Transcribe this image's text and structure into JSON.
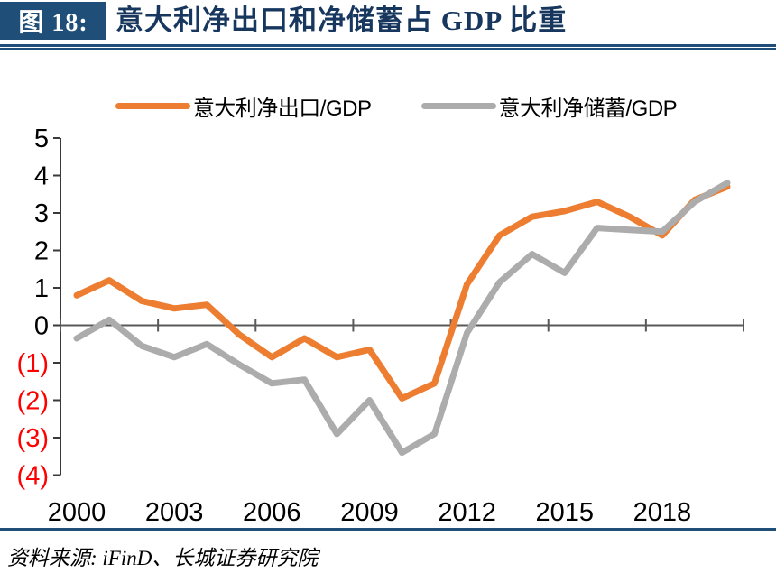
{
  "header": {
    "figure_label": "图 18:",
    "title": "意大利净出口和净储蓄占 GDP 比重"
  },
  "footer": {
    "source": "资料来源: iFinD、长城证券研究院"
  },
  "colors": {
    "accent_navy": "#1F4E79",
    "title_text": "#17375E",
    "net_exports_orange": "#ED7D31",
    "net_savings_gray": "#ACACAC",
    "negative_tick_red": "#FF0000",
    "axis_dark": "#3A3A3A",
    "zero_line_gray": "#595959"
  },
  "chart_data": {
    "type": "line",
    "title": "意大利净出口和净储蓄占 GDP 比重",
    "x": [
      2000,
      2001,
      2002,
      2003,
      2004,
      2005,
      2006,
      2007,
      2008,
      2009,
      2010,
      2011,
      2012,
      2013,
      2014,
      2015,
      2016,
      2017,
      2018,
      2019,
      2020
    ],
    "series": [
      {
        "name": "意大利净出口/GDP",
        "color": "#ED7D31",
        "values": [
          0.8,
          1.2,
          0.65,
          0.45,
          0.55,
          -0.25,
          -0.85,
          -0.35,
          -0.85,
          -0.65,
          -1.95,
          -1.55,
          1.1,
          2.4,
          2.9,
          3.05,
          3.3,
          2.9,
          2.4,
          3.35,
          3.7
        ]
      },
      {
        "name": "意大利净储蓄/GDP",
        "color": "#ACACAC",
        "values": [
          -0.35,
          0.15,
          -0.55,
          -0.85,
          -0.5,
          -1.05,
          -1.55,
          -1.45,
          -2.9,
          -2.0,
          -3.4,
          -2.9,
          -0.2,
          1.15,
          1.9,
          1.4,
          2.6,
          2.55,
          2.5,
          3.3,
          3.8
        ]
      }
    ],
    "ylim": [
      -4,
      5
    ],
    "y_tick_values": [
      5,
      4,
      3,
      2,
      1,
      0,
      -1,
      -2,
      -3,
      -4
    ],
    "y_tick_labels": [
      "5",
      "4",
      "3",
      "2",
      "1",
      "0",
      "(1)",
      "(2)",
      "(3)",
      "(4)"
    ],
    "x_tick_years": [
      2000,
      2003,
      2006,
      2009,
      2012,
      2015,
      2018
    ],
    "x_tick_labels": [
      "2000",
      "2003",
      "2006",
      "2009",
      "2012",
      "2015",
      "2018"
    ],
    "xlabel": "",
    "ylabel": "",
    "grid": false,
    "legend_position": "top",
    "markers": false
  }
}
